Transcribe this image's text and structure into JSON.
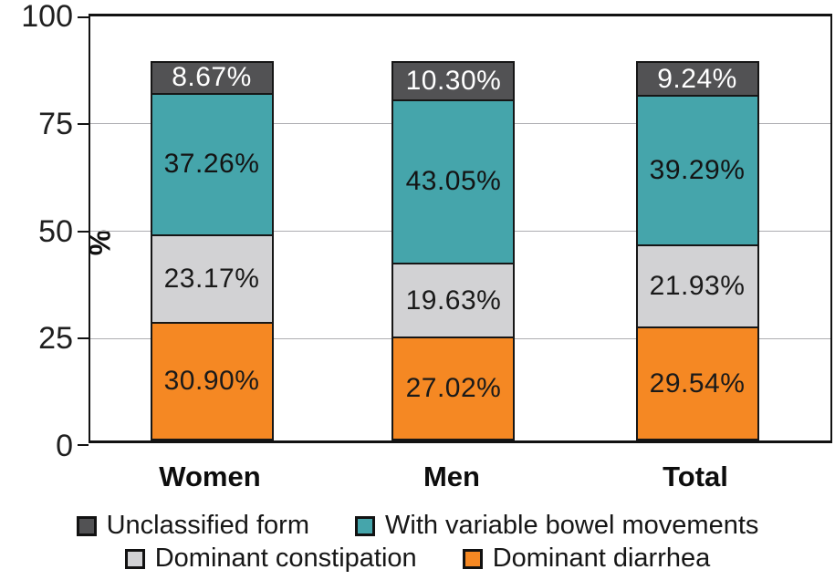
{
  "chart_data": {
    "type": "bar",
    "stacked": true,
    "title": "",
    "xlabel": "",
    "ylabel": "%",
    "ylim": [
      0,
      100
    ],
    "yticks": [
      0,
      25,
      50,
      75,
      100
    ],
    "grid": true,
    "categories": [
      "Women",
      "Men",
      "Total"
    ],
    "series": [
      {
        "name": "Dominant diarrhea",
        "color": "#f58823",
        "label_color": "#1a1a1a",
        "values": [
          30.9,
          27.02,
          29.54
        ],
        "labels": [
          "30.90%",
          "27.02%",
          "29.54%"
        ]
      },
      {
        "name": "Dominant constipation",
        "color": "#d2d2d4",
        "label_color": "#1a1a1a",
        "values": [
          23.17,
          19.63,
          21.93
        ],
        "labels": [
          "23.17%",
          "19.63%",
          "21.93%"
        ]
      },
      {
        "name": "With variable bowel movements",
        "color": "#45a5ab",
        "label_color": "#141414",
        "values": [
          37.26,
          43.05,
          39.29
        ],
        "labels": [
          "37.26%",
          "43.05%",
          "39.29%"
        ]
      },
      {
        "name": "Unclassified form",
        "color": "#525254",
        "label_color": "#ffffff",
        "values": [
          8.67,
          10.3,
          9.24
        ],
        "labels": [
          "8.67%",
          "10.30%",
          "9.24%"
        ]
      }
    ],
    "legend_position": "bottom",
    "legend_rows": [
      [
        "Unclassified form",
        "With variable bowel movements"
      ],
      [
        "Dominant constipation",
        "Dominant diarrhea"
      ]
    ],
    "axis_color": "#121212",
    "gridline_color": "#aeaeb2"
  }
}
